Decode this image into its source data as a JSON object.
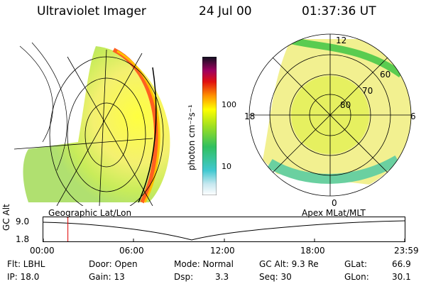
{
  "header": {
    "title": "Ultraviolet Imager",
    "date": "24 Jul 00",
    "time": "01:37:36 UT"
  },
  "colorbar": {
    "label": "photon cm⁻²s⁻¹",
    "tick_100": "100",
    "tick_10": "10"
  },
  "polar_plot": {
    "label_12": "12",
    "label_18": "18",
    "label_6": "6",
    "label_0": "0",
    "label_60": "60",
    "label_70": "70",
    "label_80": "80"
  },
  "alt_panel": {
    "left_caption": "Geographic Lat/Lon",
    "right_caption": "Apex MLat/MLT",
    "y_label": "GC Alt",
    "y_top": "9.0",
    "y_bottom": "1.8",
    "x_ticks": [
      "00:00",
      "06:00",
      "12:00",
      "18:00",
      "23:59"
    ],
    "current_time_fraction": 0.068
  },
  "info": {
    "flt": "Flt: LBHL",
    "ip": "IP: 18.0",
    "door": "Door: Open",
    "gain": "Gain: 13",
    "mode": "Mode: Normal",
    "dsp": "Dsp:",
    "dsp_val": "3.3",
    "gcalt": "GC Alt: 9.3 Re",
    "seq": "Seq: 30",
    "glat": "GLat:",
    "glat_val": "66.9",
    "glon": "GLon:",
    "glon_val": "30.1"
  }
}
